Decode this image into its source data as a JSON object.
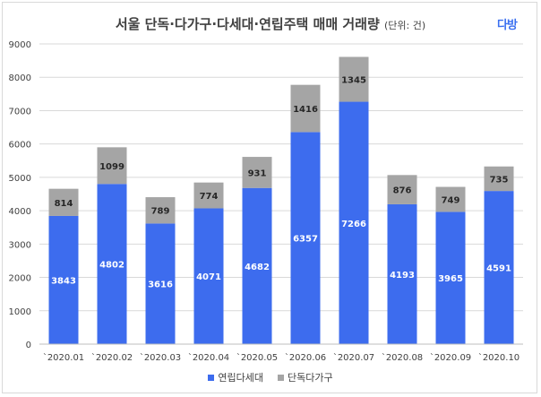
{
  "title": "서울 단독·다가구·다세대·연립주택 매매 거래량",
  "unit": "(단위: 건)",
  "logo": "다방",
  "colors": {
    "series1": "#3d6cee",
    "series2": "#a5a5a5",
    "grid": "#d9d9d9",
    "text": "#404040"
  },
  "chart_data": {
    "type": "bar",
    "stacked": true,
    "categories": [
      "`2020.01",
      "`2020.02",
      "`2020.03",
      "`2020.04",
      "`2020.05",
      "`2020.06",
      "`2020.07",
      "`2020.08",
      "`2020.09",
      "`2020.10"
    ],
    "series": [
      {
        "name": "연립다세대",
        "values": [
          3843,
          4802,
          3616,
          4071,
          4682,
          6357,
          7266,
          4193,
          3965,
          4591
        ]
      },
      {
        "name": "단독다가구",
        "values": [
          814,
          1099,
          789,
          774,
          931,
          1416,
          1345,
          876,
          749,
          735
        ]
      }
    ],
    "ylim": [
      0,
      9000
    ],
    "yticks": [
      0,
      1000,
      2000,
      3000,
      4000,
      5000,
      6000,
      7000,
      8000,
      9000
    ],
    "grid": true,
    "legend": "bottom"
  }
}
